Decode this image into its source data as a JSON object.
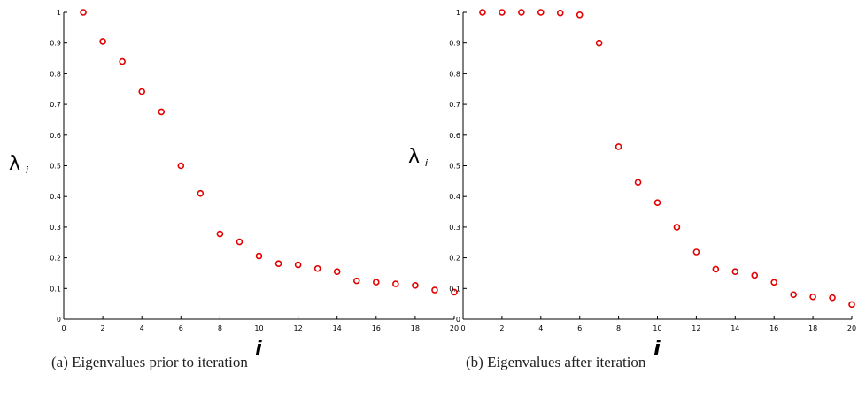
{
  "chart_data": [
    {
      "type": "scatter",
      "caption": "(a) Eigenvalues prior to iteration",
      "xlabel": "i",
      "ylabel": "λ",
      "ylabel_sub": "i",
      "xlim": [
        0,
        20
      ],
      "ylim": [
        0,
        1
      ],
      "xticks": [
        0,
        2,
        4,
        6,
        8,
        10,
        12,
        14,
        16,
        18,
        20
      ],
      "yticks": [
        "0",
        "0.1",
        "0.2",
        "0.3",
        "0.4",
        "0.5",
        "0.6",
        "0.7",
        "0.8",
        "0.9",
        "1"
      ],
      "grid": false,
      "marker_color": "#e30000",
      "x": [
        1,
        2,
        3,
        4,
        5,
        6,
        7,
        8,
        9,
        10,
        11,
        12,
        13,
        14,
        15,
        16,
        17,
        18,
        19,
        20
      ],
      "y": [
        1.0,
        0.905,
        0.84,
        0.742,
        0.676,
        0.5,
        0.41,
        0.278,
        0.252,
        0.206,
        0.181,
        0.177,
        0.165,
        0.155,
        0.125,
        0.121,
        0.115,
        0.11,
        0.095,
        0.088
      ]
    },
    {
      "type": "scatter",
      "caption": "(b) Eigenvalues after iteration",
      "xlabel": "i",
      "ylabel": "λ",
      "ylabel_sub": "i",
      "xlim": [
        0,
        20
      ],
      "ylim": [
        0,
        1
      ],
      "xticks": [
        0,
        2,
        4,
        6,
        8,
        10,
        12,
        14,
        16,
        18,
        20
      ],
      "yticks": [
        "0",
        "0.1",
        "0.2",
        "0.3",
        "0.4",
        "0.5",
        "0.6",
        "0.7",
        "0.8",
        "0.9",
        "1"
      ],
      "grid": false,
      "marker_color": "#e30000",
      "x": [
        1,
        2,
        3,
        4,
        5,
        6,
        7,
        8,
        9,
        10,
        11,
        12,
        13,
        14,
        15,
        16,
        17,
        18,
        19,
        20
      ],
      "y": [
        1.0,
        1.0,
        1.0,
        1.0,
        0.998,
        0.992,
        0.9,
        0.562,
        0.446,
        0.38,
        0.3,
        0.219,
        0.163,
        0.155,
        0.143,
        0.12,
        0.08,
        0.073,
        0.07,
        0.048
      ]
    }
  ]
}
